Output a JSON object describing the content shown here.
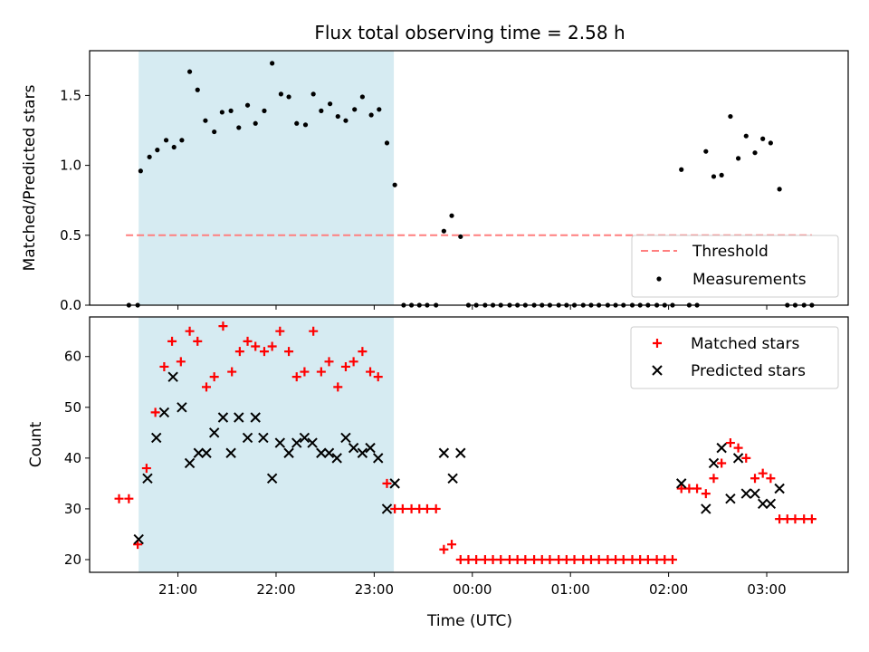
{
  "chart_data": {
    "title": "Flux total observing time = 2.58 h",
    "xlabel": "Time (UTC)",
    "x_unit": "hours UTC (values ≥ 24 are after midnight)",
    "x_ticks": [
      {
        "t": 21,
        "label": "21:00"
      },
      {
        "t": 22,
        "label": "22:00"
      },
      {
        "t": 23,
        "label": "23:00"
      },
      {
        "t": 24,
        "label": "00:00"
      },
      {
        "t": 25,
        "label": "01:00"
      },
      {
        "t": 26,
        "label": "02:00"
      },
      {
        "t": 27,
        "label": "03:00"
      }
    ],
    "xlim": [
      20.1,
      27.83
    ],
    "shaded_interval": [
      20.6,
      23.2
    ],
    "shade_color": "#add8e6",
    "panels": [
      {
        "type": "scatter",
        "ylabel": "Matched/Predicted stars",
        "ylim": [
          0,
          1.82
        ],
        "yticks": [
          {
            "v": 0.0,
            "label": "0.0"
          },
          {
            "v": 0.5,
            "label": "0.5"
          },
          {
            "v": 1.0,
            "label": "1.0"
          },
          {
            "v": 1.5,
            "label": "1.5"
          }
        ],
        "threshold": {
          "name": "Threshold",
          "value": 0.5,
          "x_range": [
            20.47,
            27.46
          ],
          "color": "#ff7f7f"
        },
        "legend": {
          "position": "lower right",
          "entries": [
            "Threshold",
            "Measurements"
          ]
        },
        "series": [
          {
            "name": "Measurements",
            "marker": "dot",
            "color": "#000000",
            "points": [
              [
                20.5,
                0
              ],
              [
                20.59,
                0
              ],
              [
                20.62,
                0.96
              ],
              [
                20.71,
                1.06
              ],
              [
                20.79,
                1.11
              ],
              [
                20.88,
                1.18
              ],
              [
                20.96,
                1.13
              ],
              [
                21.04,
                1.18
              ],
              [
                21.12,
                1.67
              ],
              [
                21.2,
                1.54
              ],
              [
                21.28,
                1.32
              ],
              [
                21.37,
                1.24
              ],
              [
                21.45,
                1.38
              ],
              [
                21.54,
                1.39
              ],
              [
                21.62,
                1.27
              ],
              [
                21.71,
                1.43
              ],
              [
                21.79,
                1.3
              ],
              [
                21.88,
                1.39
              ],
              [
                21.96,
                1.73
              ],
              [
                22.05,
                1.51
              ],
              [
                22.13,
                1.49
              ],
              [
                22.21,
                1.3
              ],
              [
                22.3,
                1.29
              ],
              [
                22.38,
                1.51
              ],
              [
                22.46,
                1.39
              ],
              [
                22.55,
                1.44
              ],
              [
                22.63,
                1.35
              ],
              [
                22.71,
                1.32
              ],
              [
                22.8,
                1.4
              ],
              [
                22.88,
                1.49
              ],
              [
                22.97,
                1.36
              ],
              [
                23.05,
                1.4
              ],
              [
                23.13,
                1.16
              ],
              [
                23.21,
                0.86
              ],
              [
                23.3,
                0
              ],
              [
                23.38,
                0
              ],
              [
                23.46,
                0
              ],
              [
                23.54,
                0
              ],
              [
                23.63,
                0
              ],
              [
                23.71,
                0.53
              ],
              [
                23.79,
                0.64
              ],
              [
                23.88,
                0.49
              ],
              [
                23.96,
                0
              ],
              [
                24.04,
                0
              ],
              [
                24.13,
                0
              ],
              [
                24.21,
                0
              ],
              [
                24.29,
                0
              ],
              [
                24.38,
                0
              ],
              [
                24.46,
                0
              ],
              [
                24.54,
                0
              ],
              [
                24.63,
                0
              ],
              [
                24.71,
                0
              ],
              [
                24.79,
                0
              ],
              [
                24.88,
                0
              ],
              [
                24.96,
                0
              ],
              [
                25.04,
                0
              ],
              [
                25.13,
                0
              ],
              [
                25.21,
                0
              ],
              [
                25.29,
                0
              ],
              [
                25.38,
                0
              ],
              [
                25.46,
                0
              ],
              [
                25.54,
                0
              ],
              [
                25.63,
                0
              ],
              [
                25.71,
                0
              ],
              [
                25.79,
                0
              ],
              [
                25.88,
                0
              ],
              [
                25.96,
                0
              ],
              [
                26.04,
                0
              ],
              [
                26.13,
                0.97
              ],
              [
                26.21,
                0
              ],
              [
                26.29,
                0
              ],
              [
                26.38,
                1.1
              ],
              [
                26.46,
                0.92
              ],
              [
                26.54,
                0.93
              ],
              [
                26.63,
                1.35
              ],
              [
                26.71,
                1.05
              ],
              [
                26.79,
                1.21
              ],
              [
                26.88,
                1.09
              ],
              [
                26.96,
                1.19
              ],
              [
                27.04,
                1.16
              ],
              [
                27.13,
                0.83
              ],
              [
                27.21,
                0
              ],
              [
                27.29,
                0
              ],
              [
                27.38,
                0
              ],
              [
                27.46,
                0
              ]
            ]
          }
        ]
      },
      {
        "type": "scatter",
        "ylabel": "Count",
        "ylim": [
          17.5,
          67.8
        ],
        "yticks": [
          {
            "v": 20,
            "label": "20"
          },
          {
            "v": 30,
            "label": "30"
          },
          {
            "v": 40,
            "label": "40"
          },
          {
            "v": 50,
            "label": "50"
          },
          {
            "v": 60,
            "label": "60"
          }
        ],
        "legend": {
          "position": "upper right",
          "entries": [
            "Matched stars",
            "Predicted stars"
          ]
        },
        "series": [
          {
            "name": "Matched stars",
            "marker": "plus",
            "color": "#ff0000",
            "points": [
              [
                20.4,
                32
              ],
              [
                20.5,
                32
              ],
              [
                20.59,
                23
              ],
              [
                20.68,
                38
              ],
              [
                20.77,
                49
              ],
              [
                20.86,
                58
              ],
              [
                20.94,
                63
              ],
              [
                21.03,
                59
              ],
              [
                21.12,
                65
              ],
              [
                21.2,
                63
              ],
              [
                21.29,
                54
              ],
              [
                21.37,
                56
              ],
              [
                21.46,
                66
              ],
              [
                21.55,
                57
              ],
              [
                21.63,
                61
              ],
              [
                21.71,
                63
              ],
              [
                21.79,
                62
              ],
              [
                21.88,
                61
              ],
              [
                21.96,
                62
              ],
              [
                22.04,
                65
              ],
              [
                22.13,
                61
              ],
              [
                22.21,
                56
              ],
              [
                22.29,
                57
              ],
              [
                22.38,
                65
              ],
              [
                22.46,
                57
              ],
              [
                22.54,
                59
              ],
              [
                22.63,
                54
              ],
              [
                22.71,
                58
              ],
              [
                22.79,
                59
              ],
              [
                22.88,
                61
              ],
              [
                22.96,
                57
              ],
              [
                23.04,
                56
              ],
              [
                23.13,
                35
              ],
              [
                23.21,
                30
              ],
              [
                23.29,
                30
              ],
              [
                23.38,
                30
              ],
              [
                23.46,
                30
              ],
              [
                23.54,
                30
              ],
              [
                23.63,
                30
              ],
              [
                23.71,
                22
              ],
              [
                23.79,
                23
              ],
              [
                23.88,
                20
              ],
              [
                23.96,
                20
              ],
              [
                24.04,
                20
              ],
              [
                24.13,
                20
              ],
              [
                24.21,
                20
              ],
              [
                24.29,
                20
              ],
              [
                24.38,
                20
              ],
              [
                24.46,
                20
              ],
              [
                24.54,
                20
              ],
              [
                24.63,
                20
              ],
              [
                24.71,
                20
              ],
              [
                24.79,
                20
              ],
              [
                24.88,
                20
              ],
              [
                24.96,
                20
              ],
              [
                25.04,
                20
              ],
              [
                25.13,
                20
              ],
              [
                25.21,
                20
              ],
              [
                25.29,
                20
              ],
              [
                25.38,
                20
              ],
              [
                25.46,
                20
              ],
              [
                25.54,
                20
              ],
              [
                25.63,
                20
              ],
              [
                25.71,
                20
              ],
              [
                25.79,
                20
              ],
              [
                25.88,
                20
              ],
              [
                25.96,
                20
              ],
              [
                26.04,
                20
              ],
              [
                26.13,
                34
              ],
              [
                26.21,
                34
              ],
              [
                26.29,
                34
              ],
              [
                26.38,
                33
              ],
              [
                26.46,
                36
              ],
              [
                26.54,
                39
              ],
              [
                26.63,
                43
              ],
              [
                26.71,
                42
              ],
              [
                26.79,
                40
              ],
              [
                26.88,
                36
              ],
              [
                26.96,
                37
              ],
              [
                27.04,
                36
              ],
              [
                27.13,
                28
              ],
              [
                27.21,
                28
              ],
              [
                27.29,
                28
              ],
              [
                27.38,
                28
              ],
              [
                27.46,
                28
              ]
            ]
          },
          {
            "name": "Predicted stars",
            "marker": "x",
            "color": "#000000",
            "points": [
              [
                20.6,
                24
              ],
              [
                20.69,
                36
              ],
              [
                20.78,
                44
              ],
              [
                20.86,
                49
              ],
              [
                20.95,
                56
              ],
              [
                21.04,
                50
              ],
              [
                21.12,
                39
              ],
              [
                21.21,
                41
              ],
              [
                21.29,
                41
              ],
              [
                21.37,
                45
              ],
              [
                21.46,
                48
              ],
              [
                21.54,
                41
              ],
              [
                21.62,
                48
              ],
              [
                21.71,
                44
              ],
              [
                21.79,
                48
              ],
              [
                21.87,
                44
              ],
              [
                21.96,
                36
              ],
              [
                22.04,
                43
              ],
              [
                22.13,
                41
              ],
              [
                22.21,
                43
              ],
              [
                22.29,
                44
              ],
              [
                22.37,
                43
              ],
              [
                22.46,
                41
              ],
              [
                22.54,
                41
              ],
              [
                22.62,
                40
              ],
              [
                22.71,
                44
              ],
              [
                22.79,
                42
              ],
              [
                22.88,
                41
              ],
              [
                22.96,
                42
              ],
              [
                23.04,
                40
              ],
              [
                23.13,
                30
              ],
              [
                23.21,
                35
              ],
              [
                23.71,
                41
              ],
              [
                23.8,
                36
              ],
              [
                23.88,
                41
              ],
              [
                26.13,
                35
              ],
              [
                26.38,
                30
              ],
              [
                26.46,
                39
              ],
              [
                26.54,
                42
              ],
              [
                26.63,
                32
              ],
              [
                26.71,
                40
              ],
              [
                26.79,
                33
              ],
              [
                26.88,
                33
              ],
              [
                26.96,
                31
              ],
              [
                27.04,
                31
              ],
              [
                27.13,
                34
              ]
            ]
          }
        ]
      }
    ]
  }
}
